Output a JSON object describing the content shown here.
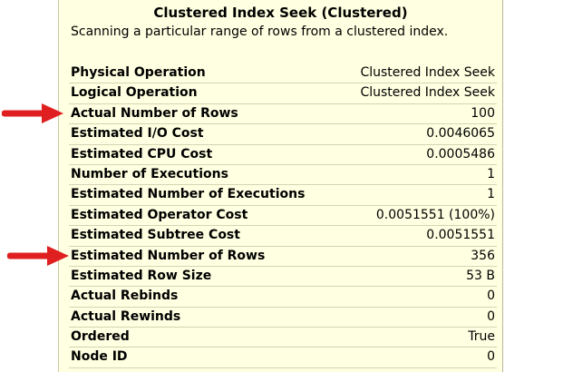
{
  "tooltip": {
    "title": "Clustered Index Seek (Clustered)",
    "subtitle": "Scanning a particular range of rows from a clustered index.",
    "rows": [
      {
        "label": "Physical Operation",
        "value": "Clustered Index Seek"
      },
      {
        "label": "Logical Operation",
        "value": "Clustered Index Seek"
      },
      {
        "label": "Actual Number of Rows",
        "value": "100"
      },
      {
        "label": "Estimated I/O Cost",
        "value": "0.0046065"
      },
      {
        "label": "Estimated CPU Cost",
        "value": "0.0005486"
      },
      {
        "label": "Number of Executions",
        "value": "1"
      },
      {
        "label": "Estimated Number of Executions",
        "value": "1"
      },
      {
        "label": "Estimated Operator Cost",
        "value": "0.0051551 (100%)"
      },
      {
        "label": "Estimated Subtree Cost",
        "value": "0.0051551"
      },
      {
        "label": "Estimated Number of Rows",
        "value": "356"
      },
      {
        "label": "Estimated Row Size",
        "value": "53 B"
      },
      {
        "label": "Actual Rebinds",
        "value": "0"
      },
      {
        "label": "Actual Rewinds",
        "value": "0"
      },
      {
        "label": "Ordered",
        "value": "True"
      },
      {
        "label": "Node ID",
        "value": "0"
      }
    ]
  },
  "colors": {
    "background": "#ffffe1",
    "arrow": "#e02020"
  },
  "annotations": [
    {
      "icon": "red-arrow-icon",
      "points_to": "Actual Number of Rows"
    },
    {
      "icon": "red-arrow-icon",
      "points_to": "Estimated Number of Rows"
    }
  ]
}
